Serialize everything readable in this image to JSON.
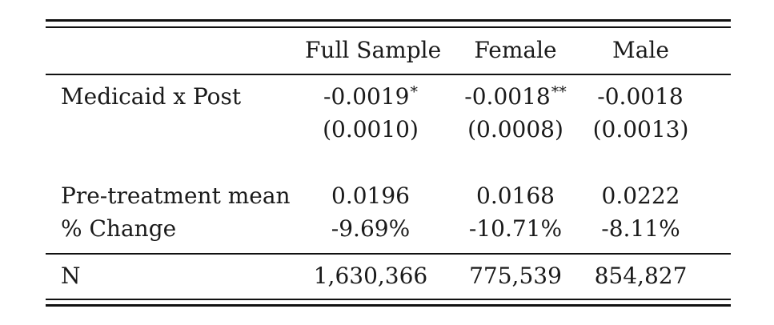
{
  "table": {
    "headers": [
      "",
      "Full Sample",
      "Female",
      "Male"
    ],
    "rows": [
      {
        "label": "Medicaid x Post",
        "values": [
          {
            "coef": "-0.0019",
            "stars": "*"
          },
          {
            "coef": "-0.0018",
            "stars": "**"
          },
          {
            "coef": "-0.0018",
            "stars": ""
          }
        ],
        "se": [
          "(0.0010)",
          "(0.0008)",
          "(0.0013)"
        ]
      },
      {
        "label": "Pre-treatment mean",
        "values": [
          "0.0196",
          "0.0168",
          "0.0222"
        ]
      },
      {
        "label": "% Change",
        "values": [
          "-9.69%",
          "-10.71%",
          "-8.11%"
        ]
      },
      {
        "label": "N",
        "values": [
          "1,630,366",
          "775,539",
          "854,827"
        ]
      }
    ]
  }
}
